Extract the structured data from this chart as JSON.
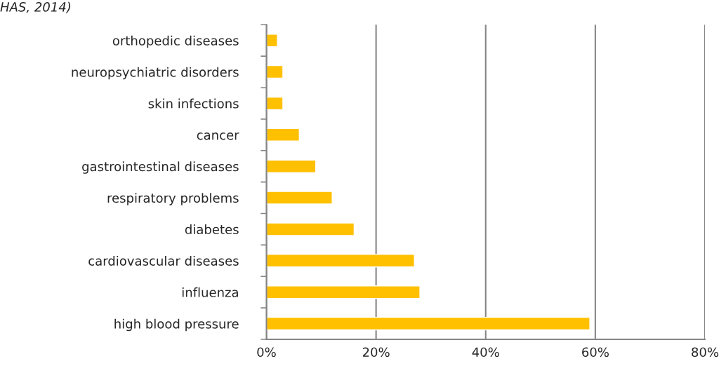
{
  "chart_data": {
    "type": "bar",
    "orientation": "horizontal",
    "categories": [
      "orthopedic diseases",
      "neuropsychiatric disorders",
      "skin infections",
      "cancer",
      "gastrointestinal diseases",
      "respiratory problems",
      "diabetes",
      "cardiovascular diseases",
      "influenza",
      "high blood pressure"
    ],
    "values": [
      2,
      3,
      3,
      6,
      9,
      12,
      16,
      27,
      28,
      59
    ],
    "color": "#ffc000",
    "xlim": [
      0,
      80
    ],
    "xticks": [
      {
        "value": 0,
        "label": "0%"
      },
      {
        "value": 20,
        "label": "20%"
      },
      {
        "value": 40,
        "label": "40%"
      },
      {
        "value": 60,
        "label": "60%"
      },
      {
        "value": 80,
        "label": "80%"
      }
    ],
    "grid": "x",
    "annotations": [
      "HAS, 2014)"
    ]
  }
}
